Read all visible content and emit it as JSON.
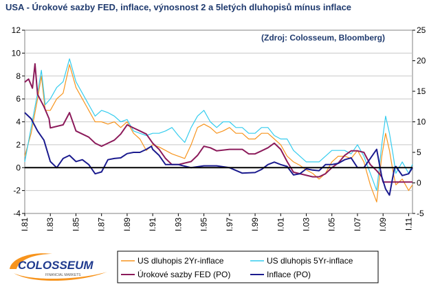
{
  "title": "USA - Úrokové sazby FED, inflace, výnosnost 2 a 5letých dluhopisů mínus inflace",
  "source": "(Zdroj: Colosseum, Bloomberg)",
  "logo": {
    "text": "COLOSSEUM",
    "subtext": "FINANCIAL MARKETS",
    "icon": "colosseum-swoosh-logo"
  },
  "colors": {
    "us2": "#f7941d",
    "us5": "#33ccee",
    "fed": "#8b1a5a",
    "infl": "#1a1a8e",
    "title": "#1f3a6e"
  },
  "chart_data": {
    "type": "line",
    "title": "USA - Úrokové sazby FED, inflace, výnosnost 2 a 5letých dluhopisů mínus inflace",
    "x_ticks": [
      "I.81",
      "I.83",
      "I.85",
      "I.87",
      "I.89",
      "I.91",
      "I.93",
      "I.95",
      "I.97",
      "I.99",
      "I.01",
      "I.03",
      "I.05",
      "I.07",
      "I.09",
      "I.11"
    ],
    "xlim": [
      1981,
      2011.3
    ],
    "ylim_left": [
      -4,
      12
    ],
    "y_ticks_left": [
      "-4",
      "-2",
      "0",
      "2",
      "4",
      "6",
      "8",
      "10",
      "12"
    ],
    "ylim_right": [
      -5,
      25
    ],
    "y_ticks_right": [
      "-5",
      "0",
      "5",
      "10",
      "15",
      "20",
      "25"
    ],
    "series": [
      {
        "name": "US dluhopis 2Yr-inflace",
        "axis": "left",
        "points": [
          [
            1981.0,
            1.0
          ],
          [
            1981.5,
            3.0
          ],
          [
            1982.0,
            6.0
          ],
          [
            1982.3,
            8.0
          ],
          [
            1982.6,
            5.0
          ],
          [
            1983.0,
            5.0
          ],
          [
            1983.5,
            6.0
          ],
          [
            1984.0,
            6.5
          ],
          [
            1984.5,
            9.0
          ],
          [
            1985.0,
            7.0
          ],
          [
            1985.5,
            6.0
          ],
          [
            1986.0,
            5.0
          ],
          [
            1986.5,
            4.0
          ],
          [
            1987.0,
            4.0
          ],
          [
            1987.5,
            3.8
          ],
          [
            1988.0,
            4.0
          ],
          [
            1988.5,
            3.5
          ],
          [
            1989.0,
            4.0
          ],
          [
            1989.5,
            3.0
          ],
          [
            1990.0,
            2.5
          ],
          [
            1990.5,
            1.5
          ],
          [
            1991.0,
            2.0
          ],
          [
            1991.5,
            1.8
          ],
          [
            1992.0,
            1.5
          ],
          [
            1992.5,
            1.2
          ],
          [
            1993.0,
            1.0
          ],
          [
            1993.5,
            0.8
          ],
          [
            1994.0,
            2.0
          ],
          [
            1994.5,
            3.5
          ],
          [
            1995.0,
            3.8
          ],
          [
            1995.5,
            3.5
          ],
          [
            1996.0,
            3.0
          ],
          [
            1996.5,
            3.2
          ],
          [
            1997.0,
            3.5
          ],
          [
            1997.5,
            3.0
          ],
          [
            1998.0,
            3.0
          ],
          [
            1998.5,
            2.5
          ],
          [
            1999.0,
            2.5
          ],
          [
            1999.5,
            3.0
          ],
          [
            2000.0,
            3.0
          ],
          [
            2000.5,
            2.5
          ],
          [
            2001.0,
            2.0
          ],
          [
            2001.5,
            1.0
          ],
          [
            2002.0,
            0.5
          ],
          [
            2002.5,
            0.2
          ],
          [
            2003.0,
            -0.2
          ],
          [
            2003.5,
            -0.5
          ],
          [
            2004.0,
            -1.0
          ],
          [
            2004.5,
            -0.5
          ],
          [
            2005.0,
            0.5
          ],
          [
            2005.5,
            1.0
          ],
          [
            2006.0,
            1.0
          ],
          [
            2006.5,
            0.8
          ],
          [
            2007.0,
            1.5
          ],
          [
            2007.5,
            0.5
          ],
          [
            2008.0,
            -1.5
          ],
          [
            2008.5,
            -3.0
          ],
          [
            2008.9,
            1.0
          ],
          [
            2009.2,
            3.0
          ],
          [
            2009.5,
            1.5
          ],
          [
            2009.8,
            -0.5
          ],
          [
            2010.0,
            -1.5
          ],
          [
            2010.5,
            -1.0
          ],
          [
            2011.0,
            -2.0
          ],
          [
            2011.3,
            -1.5
          ]
        ]
      },
      {
        "name": "US dluhopis 5Yr-inflace",
        "axis": "left",
        "points": [
          [
            1981.0,
            0.5
          ],
          [
            1981.5,
            3.5
          ],
          [
            1982.0,
            6.5
          ],
          [
            1982.3,
            8.5
          ],
          [
            1982.6,
            5.5
          ],
          [
            1983.0,
            6.0
          ],
          [
            1983.5,
            7.0
          ],
          [
            1984.0,
            7.5
          ],
          [
            1984.5,
            9.5
          ],
          [
            1985.0,
            7.5
          ],
          [
            1985.5,
            6.5
          ],
          [
            1986.0,
            5.5
          ],
          [
            1986.5,
            4.5
          ],
          [
            1987.0,
            5.0
          ],
          [
            1987.5,
            4.8
          ],
          [
            1988.0,
            4.5
          ],
          [
            1988.5,
            4.0
          ],
          [
            1989.0,
            4.2
          ],
          [
            1989.5,
            3.2
          ],
          [
            1990.0,
            3.0
          ],
          [
            1990.5,
            2.8
          ],
          [
            1991.0,
            3.0
          ],
          [
            1991.5,
            3.0
          ],
          [
            1992.0,
            3.2
          ],
          [
            1992.5,
            3.5
          ],
          [
            1993.0,
            2.8
          ],
          [
            1993.5,
            2.2
          ],
          [
            1994.0,
            3.5
          ],
          [
            1994.5,
            4.5
          ],
          [
            1995.0,
            5.0
          ],
          [
            1995.5,
            4.0
          ],
          [
            1996.0,
            3.5
          ],
          [
            1996.5,
            4.0
          ],
          [
            1997.0,
            4.0
          ],
          [
            1997.5,
            3.5
          ],
          [
            1998.0,
            3.5
          ],
          [
            1998.5,
            3.0
          ],
          [
            1999.0,
            3.0
          ],
          [
            1999.5,
            3.5
          ],
          [
            2000.0,
            3.5
          ],
          [
            2000.5,
            2.8
          ],
          [
            2001.0,
            2.5
          ],
          [
            2001.5,
            2.5
          ],
          [
            2002.0,
            1.5
          ],
          [
            2002.5,
            1.0
          ],
          [
            2003.0,
            0.5
          ],
          [
            2003.5,
            0.5
          ],
          [
            2004.0,
            0.5
          ],
          [
            2004.5,
            1.0
          ],
          [
            2005.0,
            1.5
          ],
          [
            2005.5,
            1.5
          ],
          [
            2006.0,
            1.5
          ],
          [
            2006.5,
            1.2
          ],
          [
            2007.0,
            2.0
          ],
          [
            2007.5,
            1.0
          ],
          [
            2008.0,
            -0.5
          ],
          [
            2008.5,
            -2.0
          ],
          [
            2008.9,
            2.0
          ],
          [
            2009.2,
            4.5
          ],
          [
            2009.5,
            3.0
          ],
          [
            2009.8,
            1.0
          ],
          [
            2010.0,
            -0.5
          ],
          [
            2010.5,
            0.5
          ],
          [
            2011.0,
            -0.5
          ],
          [
            2011.3,
            0.3
          ]
        ]
      },
      {
        "name": "Úrokové sazby FED (PO)",
        "axis": "right",
        "points": [
          [
            1981.0,
            16.5
          ],
          [
            1981.3,
            17.0
          ],
          [
            1981.6,
            15.5
          ],
          [
            1981.8,
            19.5
          ],
          [
            1982.0,
            14.5
          ],
          [
            1982.5,
            12.5
          ],
          [
            1982.9,
            10.5
          ],
          [
            1983.0,
            9.0
          ],
          [
            1984.0,
            9.5
          ],
          [
            1984.5,
            11.5
          ],
          [
            1985.0,
            8.5
          ],
          [
            1985.5,
            8.0
          ],
          [
            1986.0,
            7.5
          ],
          [
            1986.5,
            6.5
          ],
          [
            1987.0,
            6.0
          ],
          [
            1987.5,
            6.5
          ],
          [
            1988.0,
            7.0
          ],
          [
            1988.5,
            8.0
          ],
          [
            1989.0,
            9.5
          ],
          [
            1989.5,
            9.0
          ],
          [
            1990.0,
            8.5
          ],
          [
            1990.5,
            8.0
          ],
          [
            1991.0,
            6.5
          ],
          [
            1991.5,
            5.5
          ],
          [
            1992.0,
            4.0
          ],
          [
            1992.5,
            3.0
          ],
          [
            1993.0,
            3.0
          ],
          [
            1994.0,
            3.5
          ],
          [
            1994.5,
            4.5
          ],
          [
            1995.0,
            6.0
          ],
          [
            1995.5,
            5.75
          ],
          [
            1996.0,
            5.25
          ],
          [
            1997.0,
            5.5
          ],
          [
            1998.0,
            5.5
          ],
          [
            1998.5,
            4.75
          ],
          [
            1999.0,
            4.75
          ],
          [
            1999.5,
            5.25
          ],
          [
            2000.0,
            5.75
          ],
          [
            2000.5,
            6.5
          ],
          [
            2001.0,
            5.5
          ],
          [
            2001.5,
            3.5
          ],
          [
            2002.0,
            1.75
          ],
          [
            2003.0,
            1.25
          ],
          [
            2003.5,
            1.0
          ],
          [
            2004.0,
            1.0
          ],
          [
            2004.5,
            1.5
          ],
          [
            2005.0,
            2.5
          ],
          [
            2005.5,
            3.25
          ],
          [
            2006.0,
            4.5
          ],
          [
            2006.5,
            5.25
          ],
          [
            2007.0,
            5.25
          ],
          [
            2007.5,
            5.0
          ],
          [
            2008.0,
            3.0
          ],
          [
            2008.5,
            2.0
          ],
          [
            2008.9,
            1.0
          ],
          [
            2009.0,
            0.15
          ],
          [
            2011.3,
            0.15
          ]
        ]
      },
      {
        "name": "Inflace (PO)",
        "axis": "right",
        "points": [
          [
            1981.0,
            11.5
          ],
          [
            1981.5,
            10.5
          ],
          [
            1982.0,
            8.5
          ],
          [
            1982.5,
            7.0
          ],
          [
            1983.0,
            3.5
          ],
          [
            1983.5,
            2.5
          ],
          [
            1984.0,
            4.0
          ],
          [
            1984.5,
            4.5
          ],
          [
            1985.0,
            3.5
          ],
          [
            1985.5,
            3.8
          ],
          [
            1986.0,
            3.0
          ],
          [
            1986.5,
            1.5
          ],
          [
            1987.0,
            1.8
          ],
          [
            1987.5,
            3.8
          ],
          [
            1988.0,
            4.0
          ],
          [
            1988.5,
            4.1
          ],
          [
            1989.0,
            4.8
          ],
          [
            1989.5,
            5.0
          ],
          [
            1990.0,
            5.0
          ],
          [
            1990.5,
            5.5
          ],
          [
            1990.9,
            6.0
          ],
          [
            1991.0,
            5.5
          ],
          [
            1991.5,
            4.5
          ],
          [
            1992.0,
            3.0
          ],
          [
            1992.5,
            3.0
          ],
          [
            1993.0,
            3.0
          ],
          [
            1994.0,
            2.5
          ],
          [
            1995.0,
            2.8
          ],
          [
            1996.0,
            2.8
          ],
          [
            1997.0,
            2.5
          ],
          [
            1998.0,
            1.6
          ],
          [
            1999.0,
            1.7
          ],
          [
            1999.5,
            2.2
          ],
          [
            2000.0,
            3.0
          ],
          [
            2000.5,
            3.4
          ],
          [
            2001.0,
            3.0
          ],
          [
            2001.5,
            2.7
          ],
          [
            2002.0,
            1.3
          ],
          [
            2002.5,
            1.5
          ],
          [
            2003.0,
            2.3
          ],
          [
            2003.5,
            2.1
          ],
          [
            2004.0,
            2.0
          ],
          [
            2004.5,
            3.0
          ],
          [
            2005.0,
            3.0
          ],
          [
            2005.5,
            3.2
          ],
          [
            2006.0,
            3.8
          ],
          [
            2006.5,
            4.1
          ],
          [
            2007.0,
            2.5
          ],
          [
            2007.5,
            2.5
          ],
          [
            2008.0,
            4.0
          ],
          [
            2008.5,
            5.5
          ],
          [
            2008.9,
            1.0
          ],
          [
            2009.2,
            -1.0
          ],
          [
            2009.5,
            -2.0
          ],
          [
            2009.9,
            2.5
          ],
          [
            2010.0,
            2.7
          ],
          [
            2010.5,
            1.2
          ],
          [
            2011.0,
            1.5
          ],
          [
            2011.3,
            2.5
          ]
        ]
      }
    ],
    "legend": [
      "US dluhopis 2Yr-inflace",
      "US dluhopis 5Yr-inflace",
      "Úrokové sazby FED (PO)",
      "Inflace (PO)"
    ],
    "legend_position": "bottom"
  }
}
